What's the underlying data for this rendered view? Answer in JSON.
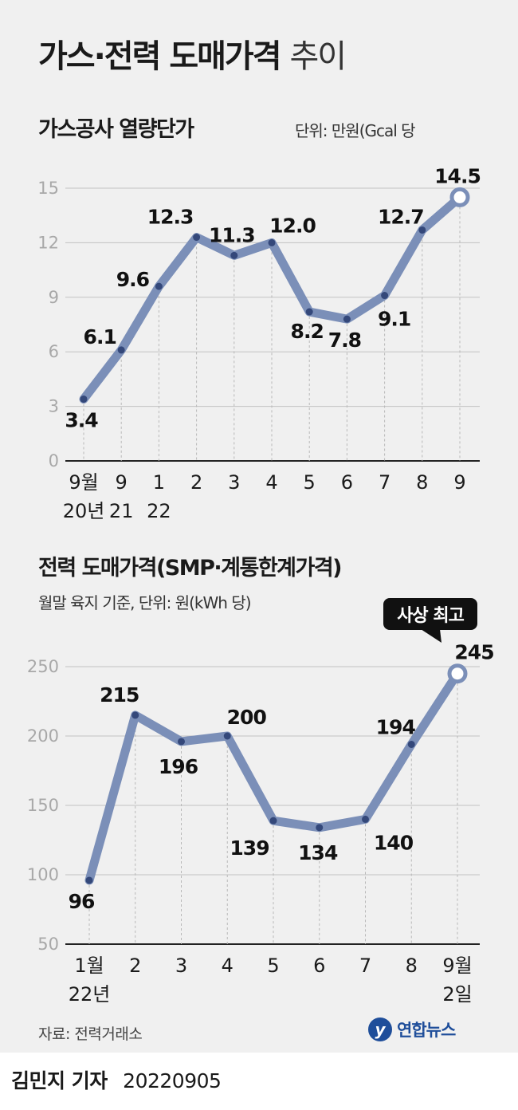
{
  "title": {
    "main": "가스·전력 도매가격",
    "light": "추이"
  },
  "gas": {
    "subtitle": "가스공사 열량단가",
    "unit": "단위: 만원(Gcal 당"
  },
  "power": {
    "subtitle": "전력 도매가격(SMP·계통한계가격)",
    "unit": "월말 육지 기준, 단위: 원(kWh 당)",
    "callout": "사상 최고"
  },
  "source": "자료: 전력거래소",
  "logo": {
    "mark": "y",
    "text": "연합뉴스"
  },
  "byline": {
    "name": "김민지 기자",
    "date": "20220905"
  },
  "colors": {
    "line": "#7b8fb8",
    "dot": "#34487a",
    "grid": "#c2c2c2",
    "tick": "#a8a8a8"
  },
  "chart_data": [
    {
      "type": "line",
      "title": "가스공사 열량단가",
      "ylabel": "단위: 만원(Gcal 당",
      "ylim": [
        0,
        15
      ],
      "y_ticks": [
        0,
        3,
        6,
        9,
        12,
        15
      ],
      "grid": true,
      "categories": [
        [
          "9월",
          "20년"
        ],
        [
          "9",
          "21"
        ],
        [
          "1",
          "22"
        ],
        [
          "2",
          ""
        ],
        [
          "3",
          ""
        ],
        [
          "4",
          ""
        ],
        [
          "5",
          ""
        ],
        [
          "6",
          ""
        ],
        [
          "7",
          ""
        ],
        [
          "8",
          ""
        ],
        [
          "9",
          ""
        ]
      ],
      "values": [
        3.4,
        6.1,
        9.6,
        12.3,
        11.3,
        12.0,
        8.2,
        7.8,
        9.1,
        12.7,
        14.5
      ],
      "labels": [
        "3.4",
        "6.1",
        "9.6",
        "12.3",
        "11.3",
        "12.0",
        "8.2",
        "7.8",
        "9.1",
        "12.7",
        "14.5"
      ]
    },
    {
      "type": "line",
      "title": "전력 도매가격(SMP·계통한계가격)",
      "ylabel": "월말 육지 기준, 단위: 원(kWh 당)",
      "ylim": [
        50,
        250
      ],
      "y_ticks": [
        50,
        100,
        150,
        200,
        250
      ],
      "grid": true,
      "categories": [
        [
          "1월",
          "22년"
        ],
        [
          "2",
          ""
        ],
        [
          "3",
          ""
        ],
        [
          "4",
          ""
        ],
        [
          "5",
          ""
        ],
        [
          "6",
          ""
        ],
        [
          "7",
          ""
        ],
        [
          "8",
          ""
        ],
        [
          "9월",
          "2일"
        ]
      ],
      "values": [
        96,
        215,
        196,
        200,
        139,
        134,
        140,
        194,
        245
      ],
      "labels": [
        "96",
        "215",
        "196",
        "200",
        "139",
        "134",
        "140",
        "194",
        "245"
      ],
      "annotation": "사상 최고"
    }
  ]
}
